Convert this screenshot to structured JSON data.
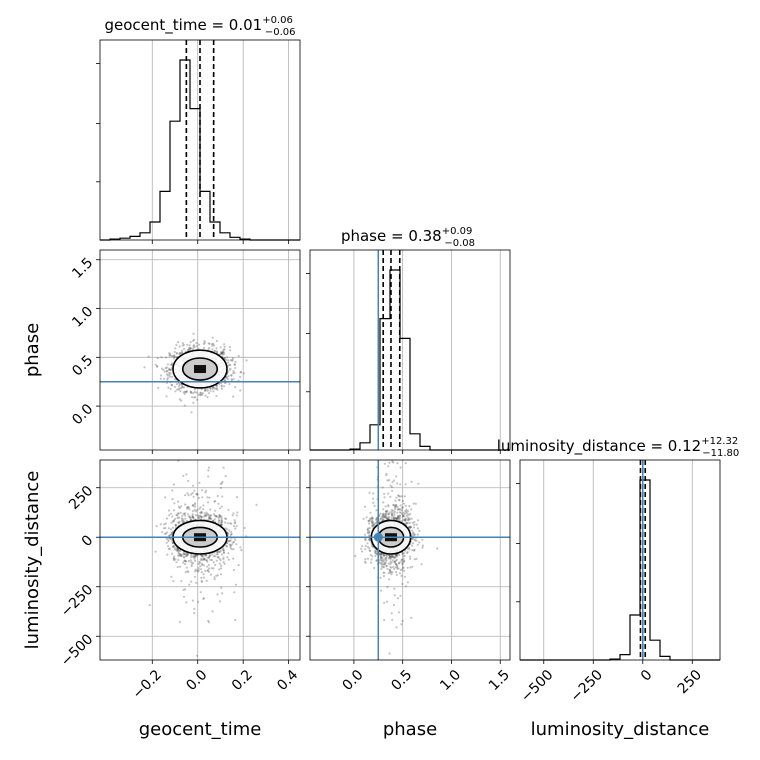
{
  "chart_data": {
    "type": "corner",
    "parameters": [
      "geocent_time",
      "phase",
      "luminosity_distance"
    ],
    "axis_labels": {
      "x": [
        "geocent_time",
        "phase",
        "luminosity_distance"
      ],
      "y": [
        "phase",
        "luminosity_distance"
      ]
    },
    "titles": [
      {
        "param": "geocent_time",
        "text": "geocent_time = 0.01",
        "plus": "+0.06",
        "minus": "−0.06",
        "median": 0.01,
        "lo": -0.05,
        "hi": 0.07
      },
      {
        "param": "phase",
        "text": "phase = 0.38",
        "plus": "+0.09",
        "minus": "−0.08",
        "median": 0.38,
        "lo": 0.3,
        "hi": 0.47
      },
      {
        "param": "luminosity_distance",
        "text": "luminosity_distance = 0.12",
        "plus": "+12.32",
        "minus": "−11.80",
        "median": 0.12,
        "lo": -11.68,
        "hi": 12.44
      }
    ],
    "ranges": {
      "geocent_time": [
        -0.43,
        0.45
      ],
      "phase": [
        -0.45,
        1.6
      ],
      "luminosity_distance": [
        -620,
        390
      ]
    },
    "ticks": {
      "geocent_time": {
        "values": [
          -0.2,
          0.0,
          0.2,
          0.4
        ],
        "labels": [
          "−0.2",
          "0.0",
          "0.2",
          "0.4"
        ]
      },
      "phase": {
        "values": [
          0.0,
          0.5,
          1.0,
          1.5
        ],
        "labels": [
          "0.0",
          "0.5",
          "1.0",
          "1.5"
        ]
      },
      "luminosity_distance": {
        "values": [
          -500,
          -250,
          0,
          250
        ],
        "labels": [
          "−500",
          "−250",
          "0",
          "250"
        ]
      }
    },
    "injection": {
      "geocent_time": null,
      "phase": 0.25,
      "luminosity_distance": 0.0
    },
    "histograms": {
      "geocent_time": {
        "edges": [
          -0.43,
          -0.386,
          -0.342,
          -0.298,
          -0.254,
          -0.21,
          -0.166,
          -0.122,
          -0.078,
          -0.034,
          0.01,
          0.054,
          0.098,
          0.142,
          0.186,
          0.23,
          0.274,
          0.318,
          0.362,
          0.406,
          0.45
        ],
        "counts": [
          0,
          0.005,
          0.01,
          0.02,
          0.04,
          0.1,
          0.27,
          0.66,
          1.0,
          0.73,
          0.27,
          0.1,
          0.04,
          0.015,
          0.005,
          0,
          0,
          0,
          0,
          0
        ]
      },
      "phase": {
        "edges": [
          -0.45,
          -0.3475,
          -0.245,
          -0.1425,
          -0.04,
          0.0625,
          0.165,
          0.2675,
          0.37,
          0.4725,
          0.575,
          0.6775,
          0.78,
          0.8825,
          0.985,
          1.0875,
          1.19,
          1.2925,
          1.395,
          1.4975,
          1.6
        ],
        "counts": [
          0,
          0,
          0,
          0,
          0.005,
          0.04,
          0.14,
          0.73,
          1.0,
          0.62,
          0.09,
          0.02,
          0,
          0,
          0,
          0,
          0,
          0,
          0,
          0
        ]
      },
      "luminosity_distance": {
        "edges": [
          -620,
          -569.5,
          -519,
          -468.5,
          -418,
          -367.5,
          -317,
          -266.5,
          -216,
          -165.5,
          -115,
          -64.5,
          -14,
          36.5,
          87,
          137.5,
          188,
          238.5,
          289,
          339.5,
          390
        ],
        "counts": [
          0,
          0,
          0,
          0,
          0,
          0,
          0,
          0,
          0,
          0.005,
          0.03,
          0.25,
          1.0,
          0.11,
          0.02,
          0,
          0,
          0,
          0,
          0
        ]
      }
    },
    "quantile_lines": {
      "geocent_time": [
        -0.05,
        0.01,
        0.07
      ],
      "phase": [
        0.3,
        0.38,
        0.47
      ],
      "luminosity_distance": [
        -11.68,
        0.12,
        12.44
      ]
    }
  },
  "colors": {
    "injection": "#4682b4",
    "grid": "#b0b0b0",
    "hist": "#000000",
    "scatter": "#555555"
  }
}
